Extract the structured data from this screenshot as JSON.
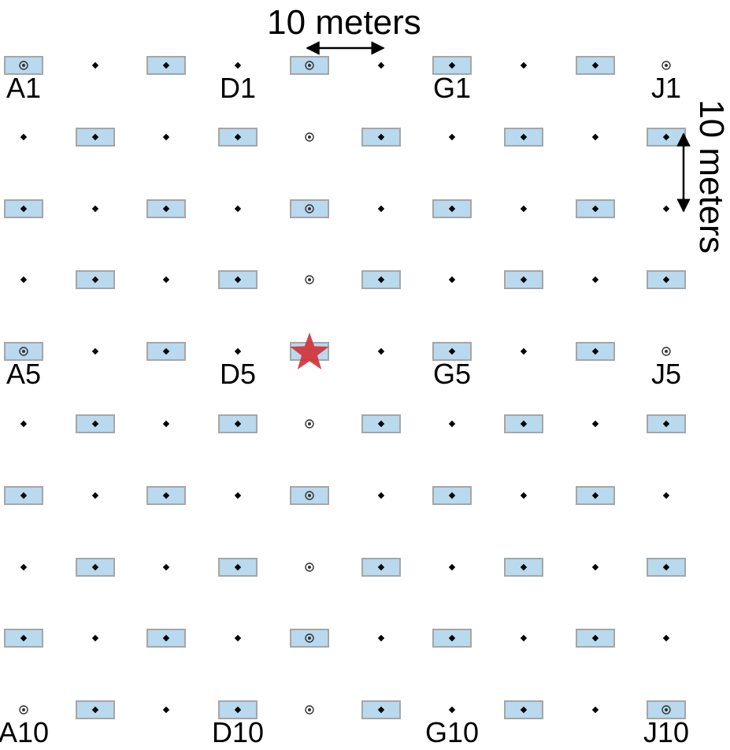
{
  "diagram": {
    "colors": {
      "plot_fill": "#b8d9ee",
      "plot_stroke": "#a6a6a6",
      "point": "#000000",
      "star": "#d1333a"
    },
    "rows": [
      1,
      2,
      3,
      4,
      5,
      6,
      7,
      8,
      9,
      10
    ],
    "columns": [
      "A",
      "B",
      "C",
      "D",
      "E",
      "F",
      "G",
      "H",
      "I",
      "J"
    ],
    "boxes": {
      "1": [
        "A",
        "C",
        "E",
        "G",
        "I"
      ],
      "2": [
        "B",
        "D",
        "F",
        "H",
        "J"
      ],
      "3": [
        "A",
        "C",
        "E",
        "G",
        "I"
      ],
      "4": [
        "B",
        "D",
        "F",
        "H",
        "J"
      ],
      "5": [
        "A",
        "C",
        "E",
        "G",
        "I"
      ],
      "6": [
        "B",
        "D",
        "F",
        "H",
        "J"
      ],
      "7": [
        "A",
        "C",
        "E",
        "G",
        "I"
      ],
      "8": [
        "B",
        "D",
        "F",
        "H",
        "J"
      ],
      "9": [
        "A",
        "C",
        "E",
        "G",
        "I"
      ],
      "10": [
        "B",
        "D",
        "F",
        "H",
        "J"
      ]
    },
    "circle_markers": [
      "A1",
      "E1",
      "J1",
      "E2",
      "E3",
      "E4",
      "A5",
      "J5",
      "E6",
      "E7",
      "E8",
      "E9",
      "A10",
      "E10",
      "J10"
    ],
    "star_marker": "E5",
    "grid_labels": [
      "A1",
      "D1",
      "G1",
      "J1",
      "A5",
      "D5",
      "G5",
      "J5",
      "A10",
      "D10",
      "G10",
      "J10"
    ],
    "scale": {
      "horizontal_label": "10 meters",
      "vertical_label": "10 meters"
    }
  }
}
